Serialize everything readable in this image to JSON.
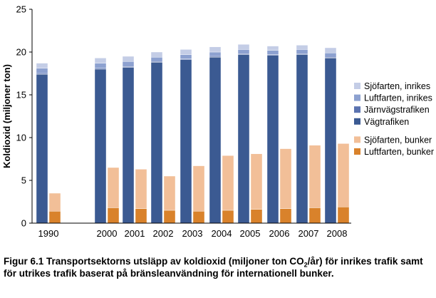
{
  "chart_data": {
    "type": "bar",
    "categories": [
      "1990",
      "2000",
      "2001",
      "2002",
      "2003",
      "2004",
      "2005",
      "2006",
      "2007",
      "2008"
    ],
    "stacks": [
      {
        "name": "domestic",
        "series": [
          {
            "name": "Vägtrafiken",
            "color": "#3b5a92",
            "values": [
              17.4,
              18.0,
              18.2,
              18.8,
              19.1,
              19.4,
              19.7,
              19.6,
              19.7,
              19.3
            ]
          },
          {
            "name": "Järnvägstrafiken",
            "color": "#5b73b0",
            "values": [
              0.1,
              0.1,
              0.1,
              0.1,
              0.1,
              0.1,
              0.1,
              0.1,
              0.1,
              0.1
            ]
          },
          {
            "name": "Luftfarten, inrikes",
            "color": "#8da1d0",
            "values": [
              0.6,
              0.6,
              0.6,
              0.5,
              0.5,
              0.5,
              0.5,
              0.5,
              0.5,
              0.5
            ]
          },
          {
            "name": "Sjöfarten, inrikes",
            "color": "#c4cde6",
            "values": [
              0.6,
              0.6,
              0.6,
              0.6,
              0.6,
              0.6,
              0.6,
              0.5,
              0.5,
              0.6
            ]
          }
        ]
      },
      {
        "name": "bunker",
        "series": [
          {
            "name": "Luftfarten, bunker",
            "color": "#d9822b",
            "values": [
              1.4,
              1.8,
              1.7,
              1.5,
              1.4,
              1.5,
              1.6,
              1.7,
              1.8,
              1.9
            ]
          },
          {
            "name": "Sjöfarten, bunker",
            "color": "#f2bf98",
            "values": [
              2.1,
              4.7,
              4.6,
              4.0,
              5.3,
              6.4,
              6.5,
              7.0,
              7.3,
              7.4
            ]
          }
        ]
      }
    ],
    "legend_order": [
      "Sjöfarten, inrikes",
      "Luftfarten, inrikes",
      "Järnvägstrafiken",
      "Vägtrafiken",
      "Sjöfarten, bunker",
      "Luftfarten, bunker"
    ],
    "ylabel": "Koldioxid (miljoner ton)",
    "yticks": [
      0,
      5,
      10,
      15,
      20,
      25
    ],
    "ylim": [
      0,
      25
    ],
    "grid": false,
    "legend_position": "right"
  },
  "caption": {
    "part1": "Figur 6.1 Transportsektorns utsläpp av koldioxid (miljoner ton CO",
    "sub": "2",
    "part2": "/år) för inrikes trafik samt för utrikes trafik baserat på bränsleanvändning för internationell bunker."
  }
}
